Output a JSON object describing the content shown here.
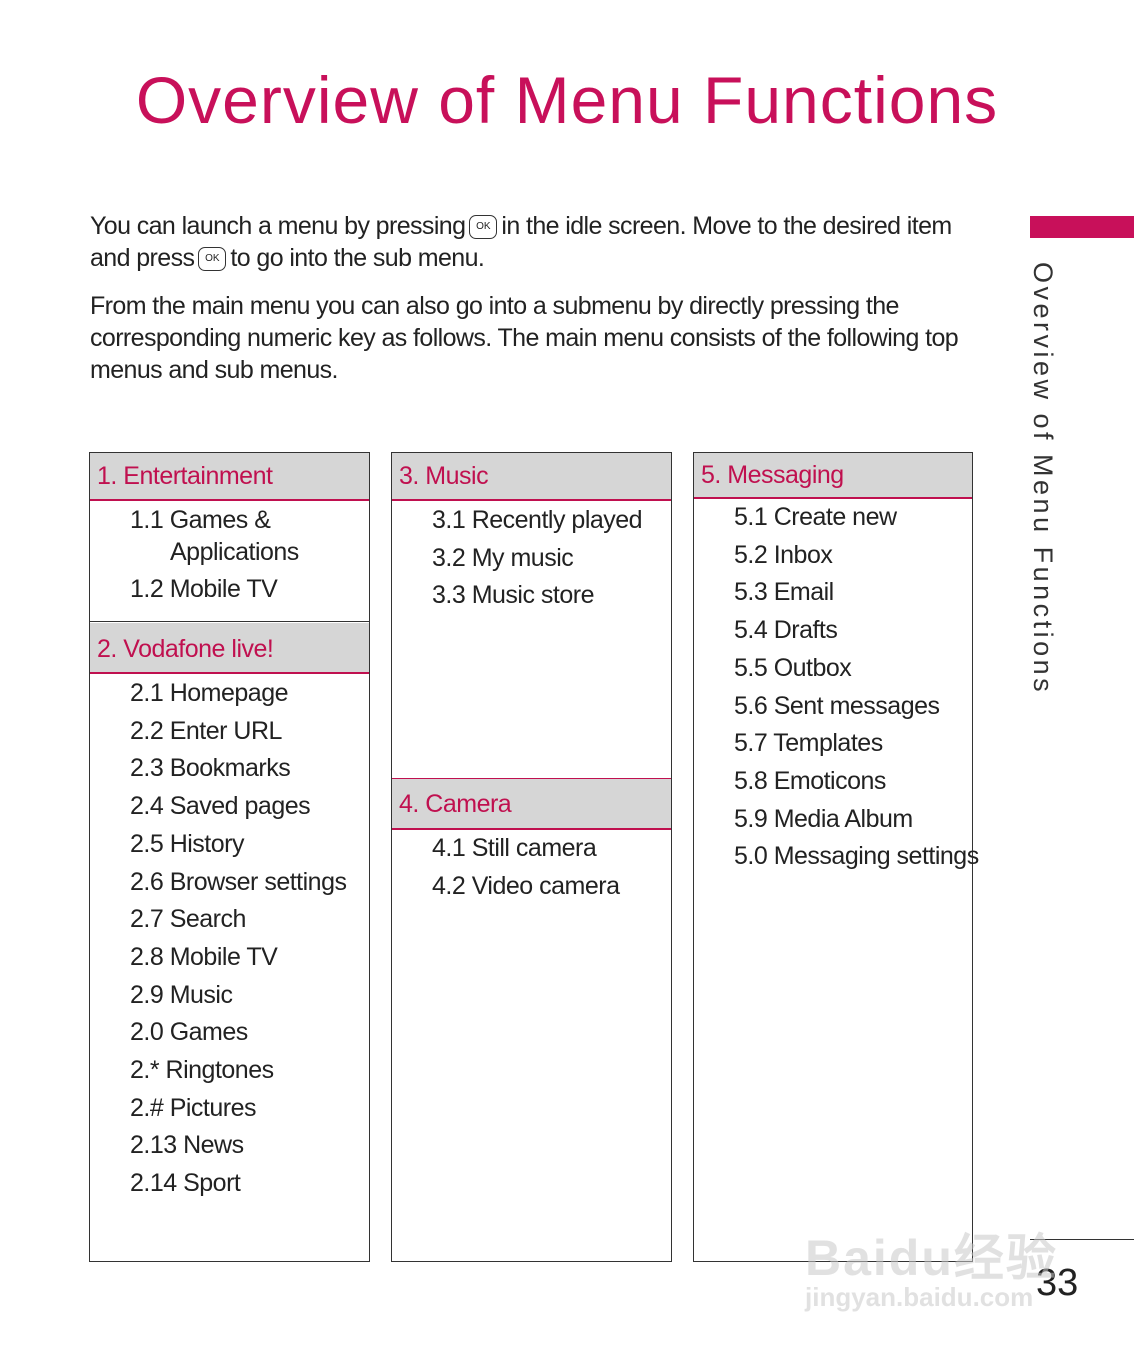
{
  "title": "Overview of Menu Functions",
  "intro": {
    "p1_a": "You can launch a menu by pressing",
    "p1_b": "in the idle screen. Move to the desired item and press",
    "p1_c": "to go into the sub menu.",
    "ok_key_label": "OK",
    "p2": "From the main menu you can also go into a submenu by directly pressing the corresponding numeric key as follows. The main menu consists of the following top menus and sub menus."
  },
  "columns": [
    {
      "sections": [
        {
          "header": "1. Entertainment",
          "items": [
            "1.1 Games &",
            "Applications",
            "1.2 Mobile TV"
          ]
        },
        {
          "header": "2. Vodafone live!",
          "items": [
            "2.1 Homepage",
            "2.2 Enter URL",
            "2.3 Bookmarks",
            "2.4 Saved pages",
            "2.5 History",
            "2.6 Browser settings",
            "2.7 Search",
            "2.8 Mobile TV",
            "2.9 Music",
            "2.0 Games",
            "2.* Ringtones",
            "2.# Pictures",
            "2.13 News",
            "2.14 Sport"
          ]
        }
      ]
    },
    {
      "sections": [
        {
          "header": "3. Music",
          "items": [
            "3.1 Recently played",
            "3.2 My music",
            "3.3 Music store"
          ]
        },
        {
          "header": "4. Camera",
          "items": [
            "4.1 Still camera",
            "4.2 Video camera"
          ]
        }
      ]
    },
    {
      "sections": [
        {
          "header": "5. Messaging",
          "items": [
            "5.1 Create new",
            "5.2 Inbox",
            "5.3 Email",
            "5.4 Drafts",
            "5.5 Outbox",
            "5.6 Sent messages",
            "5.7 Templates",
            "5.8 Emoticons",
            "5.9 Media Album",
            "5.0 Messaging settings"
          ]
        }
      ]
    }
  ],
  "sidebar_title": "Overview of Menu Functions",
  "page_number": "33",
  "watermark": {
    "line1": "Baidu经验",
    "line2": "jingyan.baidu.com"
  },
  "colors": {
    "accent": "#c8105a",
    "header_bg": "#d6d6d6"
  }
}
